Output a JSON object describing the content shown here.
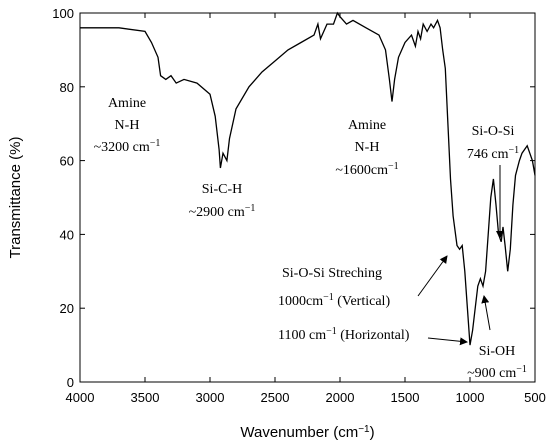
{
  "chart_data": {
    "type": "line",
    "xlabel": {
      "text": "Wavenumber (cm",
      "sup": "−1",
      "tail": ")"
    },
    "ylabel": "Transmittance (%)",
    "color": "#000000",
    "x": [
      4000,
      3700,
      3500,
      3450,
      3400,
      3380,
      3340,
      3300,
      3260,
      3200,
      3100,
      3000,
      2960,
      2930,
      2920,
      2900,
      2870,
      2850,
      2800,
      2700,
      2600,
      2500,
      2400,
      2300,
      2200,
      2170,
      2150,
      2100,
      2050,
      2020,
      2000,
      1950,
      1900,
      1800,
      1700,
      1650,
      1620,
      1600,
      1580,
      1550,
      1500,
      1450,
      1420,
      1400,
      1380,
      1360,
      1330,
      1300,
      1280,
      1250,
      1230,
      1210,
      1190,
      1170,
      1150,
      1130,
      1100,
      1080,
      1060,
      1040,
      1020,
      1000,
      980,
      960,
      940,
      920,
      900,
      880,
      860,
      840,
      820,
      800,
      780,
      760,
      746,
      730,
      710,
      690,
      670,
      650,
      620,
      600,
      560,
      540,
      520,
      500
    ],
    "values": [
      96,
      96,
      95,
      92,
      88,
      83,
      82,
      83,
      81,
      82,
      81,
      78,
      72,
      63,
      58,
      62,
      60,
      66,
      74,
      80,
      84,
      87,
      90,
      92,
      94,
      97,
      93,
      97,
      97,
      100,
      99,
      97,
      98,
      96,
      94,
      90,
      82,
      76,
      82,
      88,
      92,
      94,
      91,
      95,
      93,
      97,
      95,
      97,
      96,
      98,
      96,
      90,
      85,
      70,
      55,
      45,
      37,
      36,
      37,
      30,
      20,
      10,
      14,
      20,
      26,
      28,
      26,
      30,
      40,
      50,
      55,
      48,
      40,
      38,
      42,
      37,
      30,
      36,
      48,
      56,
      60,
      62,
      64,
      62,
      60,
      56
    ],
    "xlim": [
      4000,
      500
    ],
    "xticks": [
      4000,
      3500,
      3000,
      2500,
      2000,
      1500,
      1000,
      500
    ],
    "ylim": [
      0,
      100
    ],
    "yticks": [
      0,
      20,
      40,
      60,
      80,
      100
    ],
    "annotations": [
      {
        "lines": [
          {
            "text": "Amine"
          },
          {
            "text": "N-H"
          },
          {
            "text": "~3200 cm",
            "sup": "−1"
          }
        ]
      },
      {
        "lines": [
          {
            "text": "Si-C-H"
          },
          {
            "text": "~2900 cm",
            "sup": "−1"
          }
        ]
      },
      {
        "lines": [
          {
            "text": "Amine"
          },
          {
            "text": "N-H"
          },
          {
            "text": "~1600cm",
            "sup": "−1"
          }
        ]
      },
      {
        "lines": [
          {
            "text": "Si-O-Si"
          },
          {
            "text": "746 cm",
            "sup": "−1"
          }
        ]
      },
      {
        "lines": [
          {
            "text": "Si-O-Si Streching"
          },
          {
            "text": "1000cm",
            "sup": "−1",
            "tail": " (Vertical)"
          },
          {
            "text": "1100 cm",
            "sup": "−1",
            "tail": " (Horizontal)"
          }
        ]
      },
      {
        "lines": [
          {
            "text": "Si-OH"
          },
          {
            "text": "~900 cm",
            "sup": "−1"
          }
        ]
      }
    ]
  }
}
